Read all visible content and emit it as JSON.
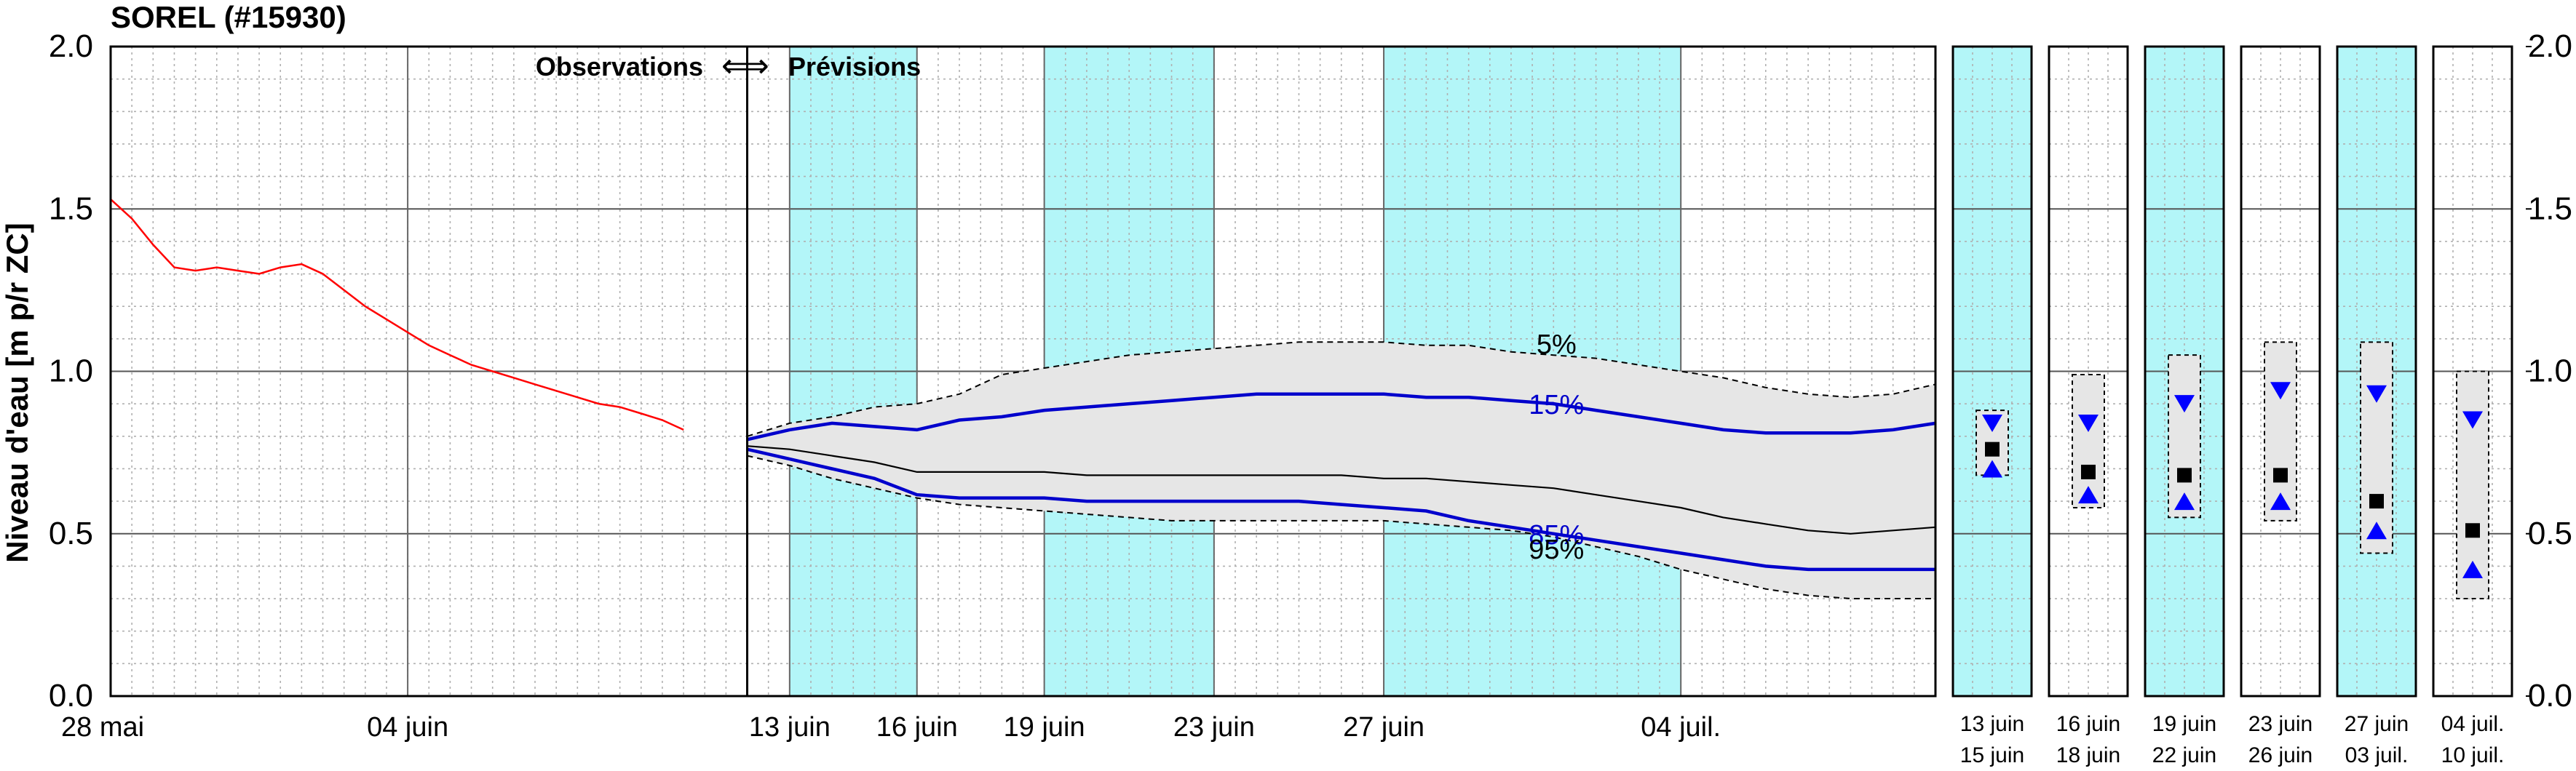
{
  "header": {
    "title": "SOREL (#15930)"
  },
  "chart_data": {
    "type": "line",
    "title": "SOREL (#15930)",
    "ylabel": "Niveau d'eau [m p/r ZC]",
    "ylim": [
      0,
      2
    ],
    "y_ticks": [
      "0.0",
      "0.5",
      "1.0",
      "1.5",
      "2.0"
    ],
    "x_origin_date": "2024-05-28",
    "grid": true,
    "annotation": {
      "left": "Observations",
      "arrow": "⟺",
      "right": "Prévisions"
    },
    "x_tick_labels": [
      "28 mai",
      "04 juin",
      "13 juin",
      "16 juin",
      "19 juin",
      "23 juin",
      "27 juin",
      "04 juil."
    ],
    "forecast_start_day": 15,
    "forecast_end_day": 43,
    "shaded_day_ranges": [
      [
        16,
        19
      ],
      [
        22,
        26
      ],
      [
        30,
        37
      ]
    ],
    "observations": {
      "name": "Observations",
      "color": "#ff0000",
      "x": [
        0,
        0.5,
        1.0,
        1.5,
        2.0,
        2.5,
        3.0,
        3.5,
        4.0,
        4.5,
        5.0,
        5.5,
        6.0,
        6.5,
        7.0,
        7.5,
        8.0,
        8.5,
        9.0,
        9.5,
        10.0,
        10.5,
        11.0,
        11.5,
        12.0,
        12.5,
        13.0,
        13.5
      ],
      "y": [
        1.53,
        1.47,
        1.39,
        1.32,
        1.31,
        1.32,
        1.31,
        1.3,
        1.32,
        1.33,
        1.3,
        1.25,
        1.2,
        1.16,
        1.12,
        1.08,
        1.05,
        1.02,
        1.0,
        0.98,
        0.96,
        0.94,
        0.92,
        0.9,
        0.89,
        0.87,
        0.85,
        0.82
      ]
    },
    "forecast_x": [
      15,
      16,
      17,
      18,
      19,
      20,
      21,
      22,
      23,
      24,
      25,
      26,
      27,
      28,
      29,
      30,
      31,
      32,
      33,
      34,
      35,
      36,
      37,
      38,
      39,
      40,
      41,
      42,
      43
    ],
    "forecast_series": [
      {
        "name": "5%",
        "color": "#000000",
        "style": "dashed",
        "y": [
          0.8,
          0.84,
          0.86,
          0.89,
          0.9,
          0.93,
          0.99,
          1.01,
          1.03,
          1.05,
          1.06,
          1.07,
          1.08,
          1.09,
          1.09,
          1.09,
          1.08,
          1.08,
          1.06,
          1.05,
          1.04,
          1.02,
          1.0,
          0.98,
          0.95,
          0.93,
          0.92,
          0.93,
          0.96
        ]
      },
      {
        "name": "15%",
        "color": "#0000cc",
        "style": "solid",
        "y": [
          0.79,
          0.82,
          0.84,
          0.83,
          0.82,
          0.85,
          0.86,
          0.88,
          0.89,
          0.9,
          0.91,
          0.92,
          0.93,
          0.93,
          0.93,
          0.93,
          0.92,
          0.92,
          0.91,
          0.9,
          0.88,
          0.86,
          0.84,
          0.82,
          0.81,
          0.81,
          0.81,
          0.82,
          0.84
        ]
      },
      {
        "name": "",
        "color": "#000000",
        "style": "solid",
        "y": [
          0.77,
          0.76,
          0.74,
          0.72,
          0.69,
          0.69,
          0.69,
          0.69,
          0.68,
          0.68,
          0.68,
          0.68,
          0.68,
          0.68,
          0.68,
          0.67,
          0.67,
          0.66,
          0.65,
          0.64,
          0.62,
          0.6,
          0.58,
          0.55,
          0.53,
          0.51,
          0.5,
          0.51,
          0.52
        ]
      },
      {
        "name": "85%",
        "color": "#0000cc",
        "style": "solid",
        "y": [
          0.76,
          0.73,
          0.7,
          0.67,
          0.62,
          0.61,
          0.61,
          0.61,
          0.6,
          0.6,
          0.6,
          0.6,
          0.6,
          0.6,
          0.59,
          0.58,
          0.57,
          0.54,
          0.52,
          0.5,
          0.48,
          0.46,
          0.44,
          0.42,
          0.4,
          0.39,
          0.39,
          0.39,
          0.39
        ]
      },
      {
        "name": "95%",
        "color": "#000000",
        "style": "dashed",
        "y": [
          0.74,
          0.71,
          0.67,
          0.64,
          0.61,
          0.59,
          0.58,
          0.57,
          0.56,
          0.55,
          0.54,
          0.54,
          0.54,
          0.54,
          0.54,
          0.54,
          0.53,
          0.52,
          0.51,
          0.49,
          0.46,
          0.43,
          0.39,
          0.36,
          0.33,
          0.31,
          0.3,
          0.3,
          0.3
        ]
      }
    ],
    "summary_panels": [
      {
        "label1": "13 juin",
        "label2": "15 juin",
        "shaded": true,
        "box": [
          0.68,
          0.88
        ],
        "upper": 0.84,
        "median": 0.76,
        "lower": 0.7
      },
      {
        "label1": "16 juin",
        "label2": "18 juin",
        "shaded": false,
        "box": [
          0.58,
          0.99
        ],
        "upper": 0.84,
        "median": 0.69,
        "lower": 0.62
      },
      {
        "label1": "19 juin",
        "label2": "22 juin",
        "shaded": true,
        "box": [
          0.55,
          1.05
        ],
        "upper": 0.9,
        "median": 0.68,
        "lower": 0.6
      },
      {
        "label1": "23 juin",
        "label2": "26 juin",
        "shaded": false,
        "box": [
          0.54,
          1.09
        ],
        "upper": 0.94,
        "median": 0.68,
        "lower": 0.6
      },
      {
        "label1": "27 juin",
        "label2": "03 juil.",
        "shaded": true,
        "box": [
          0.44,
          1.09
        ],
        "upper": 0.93,
        "median": 0.6,
        "lower": 0.51
      },
      {
        "label1": "04 juil.",
        "label2": "10 juil.",
        "shaded": false,
        "box": [
          0.3,
          1.0
        ],
        "upper": 0.85,
        "median": 0.51,
        "lower": 0.39
      }
    ],
    "colors": {
      "shade": "#b3f6f8",
      "band": "#e6e6e6",
      "observed": "#ff0000",
      "percentile": "#0000cc",
      "median": "#000000"
    }
  }
}
